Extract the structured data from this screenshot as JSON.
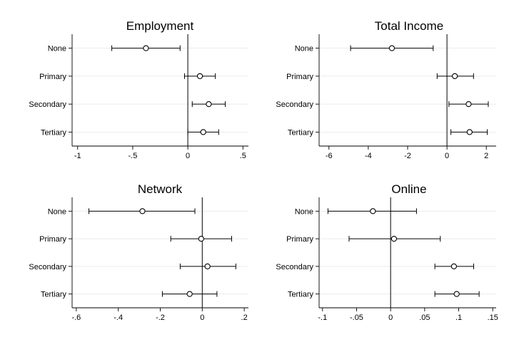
{
  "chart_data": [
    {
      "type": "scatter",
      "style": "coefficient plot with confidence-interval whiskers",
      "title": "Employment",
      "categories": [
        "None",
        "Primary",
        "Secondary",
        "Tertiary"
      ],
      "points": [
        {
          "category": "None",
          "estimate": -0.38,
          "ci_low": -0.69,
          "ci_high": -0.07
        },
        {
          "category": "Primary",
          "estimate": 0.11,
          "ci_low": -0.03,
          "ci_high": 0.25
        },
        {
          "category": "Secondary",
          "estimate": 0.19,
          "ci_low": 0.04,
          "ci_high": 0.34
        },
        {
          "category": "Tertiary",
          "estimate": 0.14,
          "ci_low": 0.0,
          "ci_high": 0.28
        }
      ],
      "xlim": [
        -1.05,
        0.55
      ],
      "xticks": [
        -1,
        -0.5,
        0,
        0.5
      ],
      "xtick_labels": [
        "-1",
        "-.5",
        "0",
        ".5"
      ],
      "reference_line": 0,
      "grid": true
    },
    {
      "type": "scatter",
      "style": "coefficient plot with confidence-interval whiskers",
      "title": "Total Income",
      "categories": [
        "None",
        "Primary",
        "Secondary",
        "Tertiary"
      ],
      "points": [
        {
          "category": "None",
          "estimate": -2.8,
          "ci_low": -4.9,
          "ci_high": -0.7
        },
        {
          "category": "Primary",
          "estimate": 0.4,
          "ci_low": -0.5,
          "ci_high": 1.35
        },
        {
          "category": "Secondary",
          "estimate": 1.1,
          "ci_low": 0.1,
          "ci_high": 2.1
        },
        {
          "category": "Tertiary",
          "estimate": 1.15,
          "ci_low": 0.2,
          "ci_high": 2.05
        }
      ],
      "xlim": [
        -6.5,
        2.5
      ],
      "xticks": [
        -6,
        -4,
        -2,
        0,
        2
      ],
      "xtick_labels": [
        "-6",
        "-4",
        "-2",
        "0",
        "2"
      ],
      "reference_line": 0,
      "grid": true
    },
    {
      "type": "scatter",
      "style": "coefficient plot with confidence-interval whiskers",
      "title": "Network",
      "categories": [
        "None",
        "Primary",
        "Secondary",
        "Tertiary"
      ],
      "points": [
        {
          "category": "None",
          "estimate": -0.285,
          "ci_low": -0.54,
          "ci_high": -0.035
        },
        {
          "category": "Primary",
          "estimate": -0.005,
          "ci_low": -0.15,
          "ci_high": 0.14
        },
        {
          "category": "Secondary",
          "estimate": 0.025,
          "ci_low": -0.105,
          "ci_high": 0.16
        },
        {
          "category": "Tertiary",
          "estimate": -0.06,
          "ci_low": -0.19,
          "ci_high": 0.07
        }
      ],
      "xlim": [
        -0.62,
        0.22
      ],
      "xticks": [
        -0.6,
        -0.4,
        -0.2,
        0,
        0.2
      ],
      "xtick_labels": [
        "-.6",
        "-.4",
        "-.2",
        "0",
        ".2"
      ],
      "reference_line": 0,
      "grid": true
    },
    {
      "type": "scatter",
      "style": "coefficient plot with confidence-interval whiskers",
      "title": "Online",
      "categories": [
        "None",
        "Primary",
        "Secondary",
        "Tertiary"
      ],
      "points": [
        {
          "category": "None",
          "estimate": -0.026,
          "ci_low": -0.092,
          "ci_high": 0.038
        },
        {
          "category": "Primary",
          "estimate": 0.005,
          "ci_low": -0.061,
          "ci_high": 0.073
        },
        {
          "category": "Secondary",
          "estimate": 0.093,
          "ci_low": 0.065,
          "ci_high": 0.122
        },
        {
          "category": "Tertiary",
          "estimate": 0.097,
          "ci_low": 0.065,
          "ci_high": 0.13
        }
      ],
      "xlim": [
        -0.105,
        0.155
      ],
      "xticks": [
        -0.1,
        -0.05,
        0,
        0.05,
        0.1,
        0.15
      ],
      "xtick_labels": [
        "-.1",
        "-.05",
        "0",
        ".05",
        ".1",
        ".15"
      ],
      "reference_line": 0,
      "grid": true
    }
  ]
}
